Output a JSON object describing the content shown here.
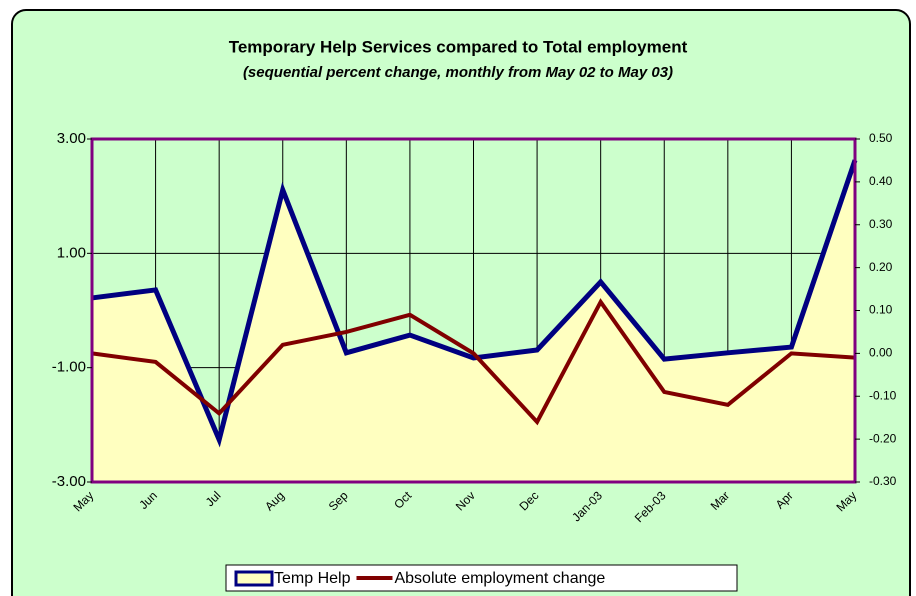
{
  "chart_data": {
    "type": "line",
    "title": "Temporary Help Services compared to Total employment",
    "subtitle": "(sequential percent change, monthly from May 02 to May 03)",
    "categories": [
      "May",
      "Jun",
      "Jul",
      "Aug",
      "Sep",
      "Oct",
      "Nov",
      "Dec",
      "Jan-03",
      "Feb-03",
      "Mar",
      "Apr",
      "May"
    ],
    "series": [
      {
        "name": "Temp Help",
        "color": "#000080",
        "fill": "#ffffc0",
        "values": [
          0.22,
          0.36,
          -2.26,
          2.11,
          -0.74,
          -0.43,
          -0.83,
          -0.69,
          0.5,
          -0.85,
          -0.74,
          -0.64,
          2.63
        ]
      },
      {
        "name": "Absolute employment change",
        "color": "#800000",
        "axis": "y2",
        "values": [
          0.0,
          -0.02,
          -0.14,
          0.02,
          0.05,
          0.09,
          0.0,
          -0.16,
          0.12,
          -0.09,
          -0.12,
          0.0,
          -0.01
        ]
      }
    ],
    "ylim": [
      -3,
      3
    ],
    "yticks": [
      {
        "value": -3,
        "label": "-3.00"
      },
      {
        "value": -1,
        "label": "-1.00"
      },
      {
        "value": 1,
        "label": "1.00"
      },
      {
        "value": 3,
        "label": "3.00"
      }
    ],
    "y2lim": [
      -0.3,
      0.5
    ],
    "y2ticks": [
      {
        "value": -0.3,
        "label": "-0.30"
      },
      {
        "value": -0.2,
        "label": "-0.20"
      },
      {
        "value": -0.1,
        "label": "-0.10"
      },
      {
        "value": 0,
        "label": "0.00"
      },
      {
        "value": 0.1,
        "label": "0.10"
      },
      {
        "value": 0.2,
        "label": "0.20"
      },
      {
        "value": 0.3,
        "label": "0.30"
      },
      {
        "value": 0.4,
        "label": "0.40"
      },
      {
        "value": 0.5,
        "label": "0.50"
      }
    ],
    "grid": true,
    "legend": "bottom"
  }
}
